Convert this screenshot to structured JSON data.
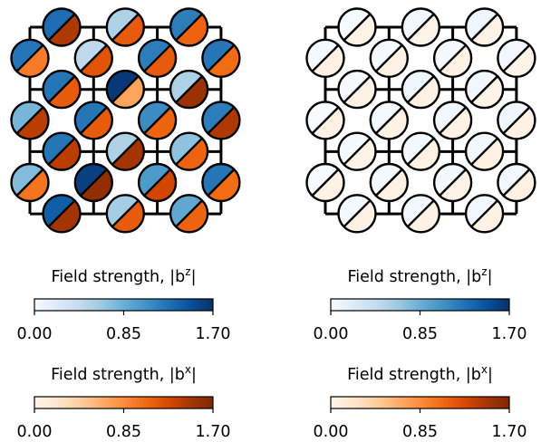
{
  "panels": [
    {
      "id": "left",
      "circles": [
        {
          "row": 0,
          "col": 0,
          "bz": 1.3,
          "bx": 1.45
        },
        {
          "row": 0,
          "col": 1,
          "bz": 0.55,
          "bx": 1.15
        },
        {
          "row": 0,
          "col": 2,
          "bz": 1.2,
          "bx": 1.1
        },
        {
          "row": 1,
          "col": 0,
          "bz": 1.25,
          "bx": 0.95
        },
        {
          "row": 1,
          "col": 1,
          "bz": 0.45,
          "bx": 1.2
        },
        {
          "row": 1,
          "col": 2,
          "bz": 1.2,
          "bx": 1.15
        },
        {
          "row": 1,
          "col": 3,
          "bz": 1.25,
          "bx": 1.05
        },
        {
          "row": 2,
          "col": 0,
          "bz": 1.25,
          "bx": 1.15
        },
        {
          "row": 2,
          "col": 1,
          "bz": 1.65,
          "bx": 0.7
        },
        {
          "row": 2,
          "col": 2,
          "bz": 0.55,
          "bx": 1.55
        },
        {
          "row": 3,
          "col": 0,
          "bz": 0.8,
          "bx": 1.4
        },
        {
          "row": 3,
          "col": 1,
          "bz": 1.25,
          "bx": 1.15
        },
        {
          "row": 3,
          "col": 2,
          "bz": 1.1,
          "bx": 1.1
        },
        {
          "row": 3,
          "col": 3,
          "bz": 1.2,
          "bx": 1.45
        },
        {
          "row": 4,
          "col": 0,
          "bz": 1.25,
          "bx": 1.4
        },
        {
          "row": 4,
          "col": 1,
          "bz": 0.55,
          "bx": 1.5
        },
        {
          "row": 4,
          "col": 2,
          "bz": 0.7,
          "bx": 1.1
        },
        {
          "row": 5,
          "col": 0,
          "bz": 0.75,
          "bx": 1.0
        },
        {
          "row": 5,
          "col": 1,
          "bz": 1.6,
          "bx": 1.6
        },
        {
          "row": 5,
          "col": 2,
          "bz": 1.0,
          "bx": 1.3
        },
        {
          "row": 5,
          "col": 3,
          "bz": 1.25,
          "bx": 1.05
        },
        {
          "row": 6,
          "col": 0,
          "bz": 1.4,
          "bx": 1.5
        },
        {
          "row": 6,
          "col": 1,
          "bz": 0.6,
          "bx": 1.15
        },
        {
          "row": 6,
          "col": 2,
          "bz": 0.9,
          "bx": 1.1
        }
      ],
      "colorbars": [
        {
          "label": "Field strength, |b",
          "superscript": "z",
          "label_end": "|",
          "colormap": "blues",
          "ticks": [
            "0.00",
            "0.85",
            "1.70"
          ]
        },
        {
          "label": "Field strength, |b",
          "superscript": "x",
          "label_end": "|",
          "colormap": "oranges",
          "ticks": [
            "0.00",
            "0.85",
            "1.70"
          ]
        }
      ]
    },
    {
      "id": "right",
      "circles": [
        {
          "row": 0,
          "col": 0,
          "bz": 0.0,
          "bx": 0.04
        },
        {
          "row": 0,
          "col": 1,
          "bz": 0.05,
          "bx": 0.03
        },
        {
          "row": 0,
          "col": 2,
          "bz": 0.06,
          "bx": 0.04
        },
        {
          "row": 1,
          "col": 0,
          "bz": 0.03,
          "bx": 0.05
        },
        {
          "row": 1,
          "col": 1,
          "bz": 0.02,
          "bx": 0.06
        },
        {
          "row": 1,
          "col": 2,
          "bz": 0.04,
          "bx": 0.05
        },
        {
          "row": 1,
          "col": 3,
          "bz": 0.05,
          "bx": 0.04
        },
        {
          "row": 2,
          "col": 0,
          "bz": 0.02,
          "bx": 0.05
        },
        {
          "row": 2,
          "col": 1,
          "bz": 0.06,
          "bx": 0.05
        },
        {
          "row": 2,
          "col": 2,
          "bz": 0.05,
          "bx": 0.04
        },
        {
          "row": 3,
          "col": 0,
          "bz": 0.0,
          "bx": 0.05
        },
        {
          "row": 3,
          "col": 1,
          "bz": 0.03,
          "bx": 0.06
        },
        {
          "row": 3,
          "col": 2,
          "bz": 0.05,
          "bx": 0.05
        },
        {
          "row": 3,
          "col": 3,
          "bz": 0.06,
          "bx": 0.05
        },
        {
          "row": 4,
          "col": 0,
          "bz": 0.02,
          "bx": 0.04
        },
        {
          "row": 4,
          "col": 1,
          "bz": 0.04,
          "bx": 0.06
        },
        {
          "row": 4,
          "col": 2,
          "bz": 0.05,
          "bx": 0.05
        },
        {
          "row": 5,
          "col": 0,
          "bz": 0.0,
          "bx": 0.05
        },
        {
          "row": 5,
          "col": 1,
          "bz": 0.03,
          "bx": 0.06
        },
        {
          "row": 5,
          "col": 2,
          "bz": 0.04,
          "bx": 0.04
        },
        {
          "row": 5,
          "col": 3,
          "bz": 0.05,
          "bx": 0.05
        },
        {
          "row": 6,
          "col": 0,
          "bz": 0.02,
          "bx": 0.05
        },
        {
          "row": 6,
          "col": 1,
          "bz": 0.04,
          "bx": 0.05
        },
        {
          "row": 6,
          "col": 2,
          "bz": 0.05,
          "bx": 0.05
        }
      ],
      "colorbars": [
        {
          "label": "Field strength, |b",
          "superscript": "z",
          "label_end": "|",
          "colormap": "blues",
          "ticks": [
            "0.00",
            "0.85",
            "1.70"
          ]
        },
        {
          "label": "Field strength, |b",
          "superscript": "x",
          "label_end": "|",
          "colormap": "oranges",
          "ticks": [
            "0.00",
            "0.85",
            "1.70"
          ]
        }
      ]
    }
  ],
  "scale": {
    "min": 0.0,
    "max": 1.7
  },
  "colormaps": {
    "blues": [
      "#f7fbff",
      "#deebf7",
      "#c6dbef",
      "#9ecae1",
      "#6baed6",
      "#4292c6",
      "#2171b5",
      "#08519c",
      "#08306b"
    ],
    "oranges": [
      "#fff5eb",
      "#fee6ce",
      "#fdd0a2",
      "#fdae6b",
      "#fd8d3c",
      "#f16913",
      "#d94801",
      "#a63603",
      "#7f2704"
    ]
  }
}
